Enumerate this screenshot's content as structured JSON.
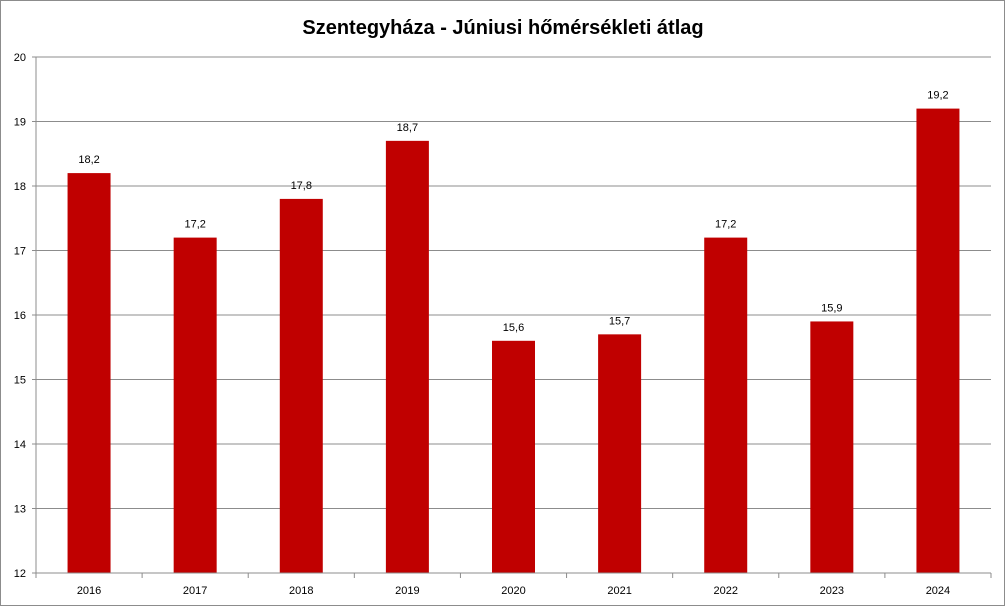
{
  "chart_data": {
    "type": "bar",
    "title": "Szentegyháza - Júniusi hőmérsékleti átlag",
    "xlabel": "",
    "ylabel": "",
    "categories": [
      "2016",
      "2017",
      "2018",
      "2019",
      "2020",
      "2021",
      "2022",
      "2023",
      "2024"
    ],
    "values": [
      18.2,
      17.2,
      17.8,
      18.7,
      15.6,
      15.7,
      17.2,
      15.9,
      19.2
    ],
    "data_labels": [
      "18,2",
      "17,2",
      "17,8",
      "18,7",
      "15,6",
      "15,7",
      "17,2",
      "15,9",
      "19,2"
    ],
    "ylim": [
      12,
      20
    ],
    "yticks": [
      12,
      13,
      14,
      15,
      16,
      17,
      18,
      19,
      20
    ],
    "grid": true,
    "legend": "none",
    "bar_color": "#c00000"
  }
}
